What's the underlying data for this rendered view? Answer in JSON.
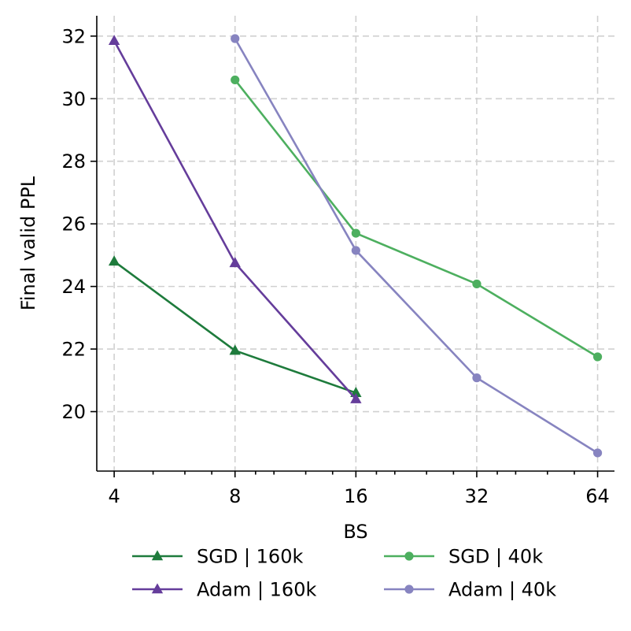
{
  "chart_data": {
    "type": "line",
    "title": "",
    "xlabel": "BS",
    "ylabel": "Final valid PPL",
    "xscale": "log2",
    "xlim": [
      3.62,
      70.5
    ],
    "ylim": [
      18.1,
      32.65
    ],
    "xticks": [
      4,
      8,
      16,
      32,
      64
    ],
    "xtick_labels": [
      "4",
      "8",
      "16",
      "32",
      "64"
    ],
    "yticks": [
      20,
      22,
      24,
      26,
      28,
      30,
      32
    ],
    "ytick_labels": [
      "20",
      "22",
      "24",
      "26",
      "28",
      "30",
      "32"
    ],
    "grid": true,
    "legend_position": "bottom",
    "series": [
      {
        "name": "SGD | 160k",
        "color": "#1e7b3c",
        "marker": "triangle",
        "x": [
          4,
          8,
          16
        ],
        "values": [
          24.8,
          21.95,
          20.6
        ]
      },
      {
        "name": "Adam | 160k",
        "color": "#653d9b",
        "marker": "triangle",
        "x": [
          4,
          8,
          16
        ],
        "values": [
          31.85,
          24.75,
          20.4
        ]
      },
      {
        "name": "SGD | 40k",
        "color": "#4daf5f",
        "marker": "circle",
        "x": [
          8,
          16,
          32,
          64
        ],
        "values": [
          30.6,
          25.7,
          24.08,
          21.75
        ]
      },
      {
        "name": "Adam | 40k",
        "color": "#8784c0",
        "marker": "circle",
        "x": [
          8,
          16,
          32,
          64
        ],
        "values": [
          31.92,
          25.15,
          21.08,
          18.68
        ]
      }
    ]
  }
}
